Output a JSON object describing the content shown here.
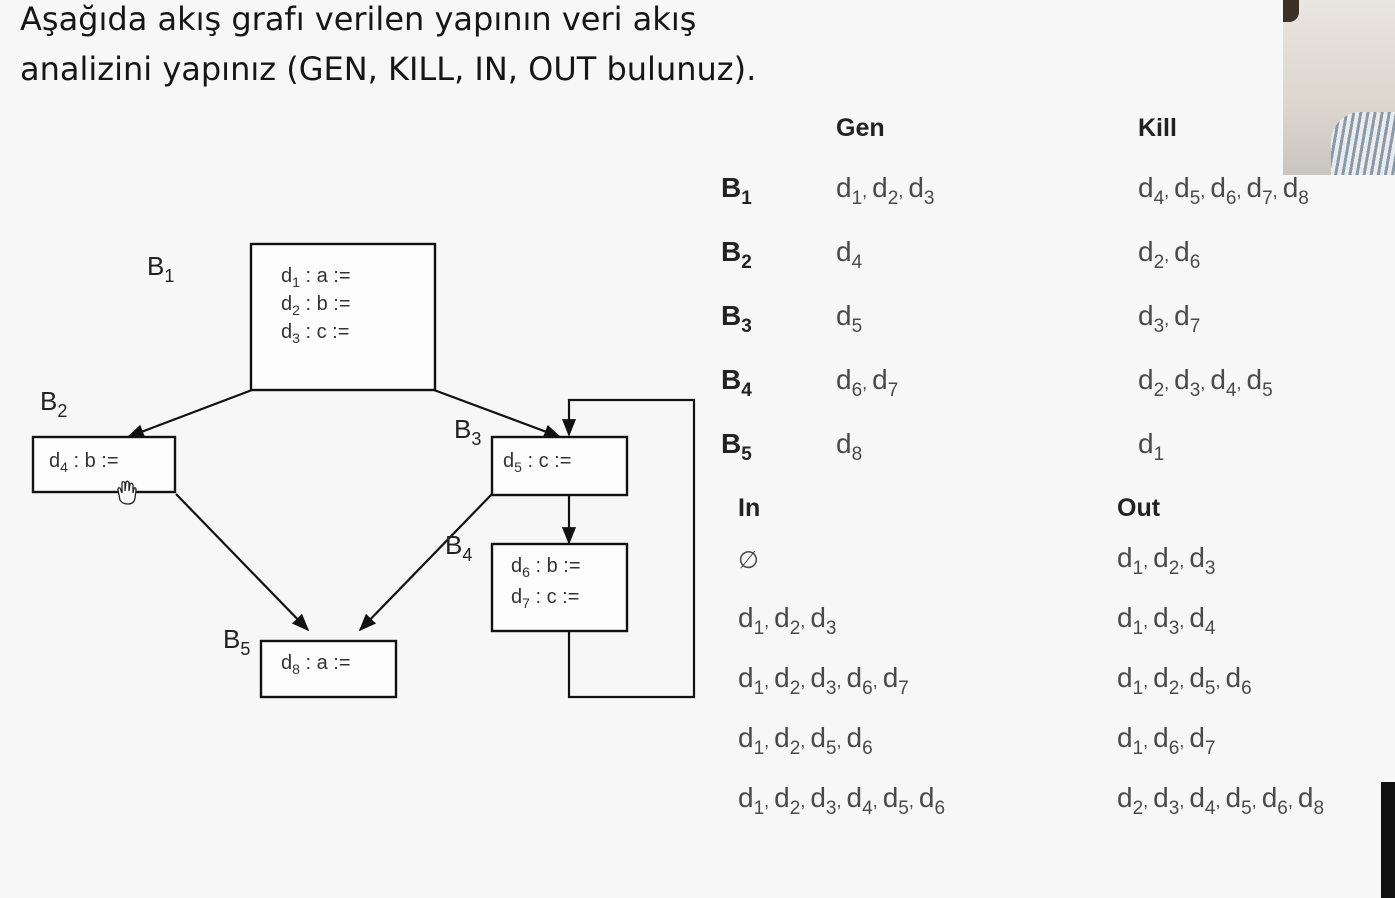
{
  "question": {
    "line1": "Aşağıda akış grafı verilen yapının veri akış",
    "line2": "analizini yapınız (GEN, KILL, IN, OUT bulunuz)."
  },
  "graph": {
    "blocks": [
      {
        "label": "B",
        "sub": "1",
        "statements": [
          [
            "d",
            "1",
            " : a :="
          ],
          [
            "d",
            "2",
            " : b :="
          ],
          [
            "d",
            "3",
            " : c :="
          ]
        ]
      },
      {
        "label": "B",
        "sub": "2",
        "statements": [
          [
            "d",
            "4",
            " : b :="
          ]
        ]
      },
      {
        "label": "B",
        "sub": "3",
        "statements": [
          [
            "d",
            "5",
            " : c :="
          ]
        ]
      },
      {
        "label": "B",
        "sub": "4",
        "statements": [
          [
            "d",
            "6",
            " : b :="
          ],
          [
            "d",
            "7",
            " : c :="
          ]
        ]
      },
      {
        "label": "B",
        "sub": "5",
        "statements": [
          [
            "d",
            "8",
            " : a :="
          ]
        ]
      }
    ],
    "edges": [
      [
        "B1",
        "B2"
      ],
      [
        "B1",
        "B3"
      ],
      [
        "B2",
        "B5"
      ],
      [
        "B3",
        "B4"
      ],
      [
        "B3",
        "B5"
      ],
      [
        "B4",
        "B3"
      ]
    ]
  },
  "table": {
    "headers": {
      "gen": "Gen",
      "kill": "Kill",
      "in": "In",
      "out": "Out"
    },
    "rows": [
      {
        "block": "B",
        "block_sub": "1",
        "gen": [
          "1",
          "2",
          "3"
        ],
        "kill": [
          "4",
          "5",
          "6",
          "7",
          "8"
        ],
        "in": [],
        "in_empty": "∅",
        "out": [
          "1",
          "2",
          "3"
        ]
      },
      {
        "block": "B",
        "block_sub": "2",
        "gen": [
          "4"
        ],
        "kill": [
          "2",
          "6"
        ],
        "in": [
          "1",
          "2",
          "3"
        ],
        "out": [
          "1",
          "3",
          "4"
        ]
      },
      {
        "block": "B",
        "block_sub": "3",
        "gen": [
          "5"
        ],
        "kill": [
          "3",
          "7"
        ],
        "in": [
          "1",
          "2",
          "3",
          "6",
          "7"
        ],
        "out": [
          "1",
          "2",
          "5",
          "6"
        ]
      },
      {
        "block": "B",
        "block_sub": "4",
        "gen": [
          "6",
          "7"
        ],
        "kill": [
          "2",
          "3",
          "4",
          "5"
        ],
        "in": [
          "1",
          "2",
          "5",
          "6"
        ],
        "out": [
          "1",
          "6",
          "7"
        ]
      },
      {
        "block": "B",
        "block_sub": "5",
        "gen": [
          "8"
        ],
        "kill": [
          "1"
        ],
        "in": [
          "1",
          "2",
          "3",
          "4",
          "5",
          "6"
        ],
        "out": [
          "2",
          "3",
          "4",
          "5",
          "6",
          "8"
        ]
      }
    ]
  }
}
